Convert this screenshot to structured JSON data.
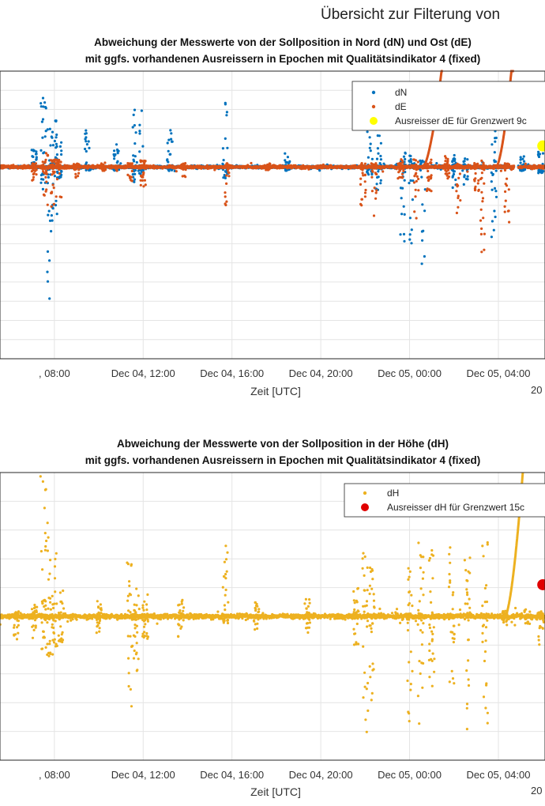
{
  "suptitle": "Übersicht zur Filterung von",
  "colors": {
    "dN": "#0072BD",
    "dE": "#D95319",
    "dH": "#EDB120",
    "outlier_dE": "#FFFF00",
    "outlier_dH": "#E00000"
  },
  "chart_data": [
    {
      "type": "scatter",
      "title": [
        "Abweichung der Messwerte von der Sollposition in Nord (dN) und Ost (dE)",
        "mit ggfs. vorhandenen Ausreissern in Epochen mit Qualitätsindikator 4 (fixed)"
      ],
      "xlabel": "Zeit [UTC]",
      "x_ticks": [
        ", 08:00",
        "Dec 04, 12:00",
        "Dec 04, 16:00",
        "Dec 04, 20:00",
        "Dec 05, 00:00",
        "Dec 05, 04:00"
      ],
      "x_ticks_hours": [
        8,
        12,
        16,
        20,
        24,
        28
      ],
      "x_partial_label": "20",
      "xlim_hours": [
        5.55,
        30.1
      ],
      "ylim": [
        -5,
        2.5
      ],
      "grid": true,
      "legend": {
        "placement": "top-right",
        "entries": [
          "dN",
          "dE",
          "Ausreisser dE für Grenzwert 9c"
        ]
      },
      "series": [
        {
          "name": "dN",
          "color": "#0072BD",
          "bursts": [
            [
              7.1,
              0.45,
              -0.05
            ],
            [
              7.5,
              1.8,
              -1.2
            ],
            [
              7.8,
              1.9,
              -3.9
            ],
            [
              8.0,
              1.5,
              -1.4
            ],
            [
              8.2,
              1.0,
              -0.3
            ],
            [
              9.5,
              1.0,
              -0.1
            ],
            [
              10.8,
              0.6,
              -0.1
            ],
            [
              11.6,
              1.6,
              -0.4
            ],
            [
              11.9,
              1.8,
              -0.2
            ],
            [
              13.2,
              1.0,
              -0.1
            ],
            [
              15.7,
              1.7,
              -0.3
            ],
            [
              18.5,
              0.4,
              -0.1
            ],
            [
              22.2,
              1.1,
              -0.2
            ],
            [
              22.6,
              1.3,
              -0.6
            ],
            [
              23.7,
              0.4,
              -2.3
            ],
            [
              24.1,
              0.3,
              -2.0
            ],
            [
              24.6,
              0.2,
              -2.6
            ],
            [
              26.0,
              0.8,
              -0.7
            ],
            [
              26.5,
              0.3,
              -0.5
            ],
            [
              27.8,
              1.2,
              -2.5
            ],
            [
              29.1,
              0.4,
              -0.1
            ],
            [
              29.9,
              0.6,
              -0.2
            ]
          ],
          "drift": []
        },
        {
          "name": "dE",
          "color": "#D95319",
          "bursts": [
            [
              7.1,
              0.1,
              -0.5
            ],
            [
              7.6,
              0.5,
              -1.1
            ],
            [
              7.9,
              0.3,
              -1.1
            ],
            [
              8.2,
              0.2,
              -0.8
            ],
            [
              9.0,
              0.1,
              -0.3
            ],
            [
              10.2,
              0.1,
              -0.1
            ],
            [
              11.4,
              0.1,
              -0.4
            ],
            [
              12.0,
              0.2,
              -0.6
            ],
            [
              13.8,
              0.1,
              -0.3
            ],
            [
              15.8,
              0.1,
              -1.1
            ],
            [
              17.6,
              0.1,
              -0.1
            ],
            [
              21.9,
              0.1,
              -1.0
            ],
            [
              22.4,
              0.1,
              -1.3
            ],
            [
              23.6,
              0.2,
              -0.3
            ],
            [
              24.3,
              0.2,
              -1.4
            ],
            [
              24.9,
              0.2,
              -0.7
            ],
            [
              25.7,
              0.3,
              -0.3
            ],
            [
              26.2,
              0.1,
              -1.2
            ],
            [
              27.3,
              0.2,
              -3.3
            ],
            [
              27.0,
              0.1,
              -0.8
            ],
            [
              28.4,
              0.1,
              -1.5
            ]
          ],
          "drift": [
            [
              24.6,
              0.0
            ],
            [
              25.5,
              2.8
            ],
            [
              27.9,
              0.0
            ],
            [
              28.7,
              3.2
            ]
          ]
        },
        {
          "name": "Ausreisser dE für Grenzwert 9c",
          "color": "#FFFF00",
          "points": [
            [
              30.0,
              0.55
            ]
          ]
        }
      ]
    },
    {
      "type": "scatter",
      "title": [
        "Abweichung der Messwerte von der Sollposition in der Höhe (dH)",
        "mit ggfs. vorhandenen Ausreissern in Epochen mit Qualitätsindikator 4 (fixed)"
      ],
      "xlabel": "Zeit [UTC]",
      "x_ticks": [
        ", 08:00",
        "Dec 04, 12:00",
        "Dec 04, 16:00",
        "Dec 04, 20:00",
        "Dec 05, 00:00",
        "Dec 05, 04:00"
      ],
      "x_ticks_hours": [
        8,
        12,
        16,
        20,
        24,
        28
      ],
      "x_partial_label": "20",
      "xlim_hours": [
        5.55,
        30.1
      ],
      "ylim": [
        -5,
        5
      ],
      "grid": true,
      "legend": {
        "placement": "top-right",
        "entries": [
          "dH",
          "Ausreisser dH für Grenzwert 15c"
        ]
      },
      "series": [
        {
          "name": "dH",
          "color": "#EDB120",
          "bursts": [
            [
              6.3,
              0.2,
              -0.8
            ],
            [
              7.1,
              0.4,
              -1.1
            ],
            [
              7.5,
              5.0,
              -1.2
            ],
            [
              7.7,
              3.8,
              -1.6
            ],
            [
              8.0,
              2.4,
              -1.8
            ],
            [
              8.3,
              1.0,
              -0.9
            ],
            [
              10.0,
              0.6,
              -0.6
            ],
            [
              11.4,
              2.0,
              -3.5
            ],
            [
              11.7,
              1.6,
              -1.9
            ],
            [
              12.1,
              0.8,
              -0.8
            ],
            [
              13.7,
              0.6,
              -0.8
            ],
            [
              15.7,
              2.6,
              -0.4
            ],
            [
              17.1,
              0.5,
              -0.5
            ],
            [
              19.4,
              0.6,
              -0.6
            ],
            [
              21.6,
              1.3,
              -1.1
            ],
            [
              22.0,
              2.2,
              -4.1
            ],
            [
              22.3,
              1.8,
              -3.4
            ],
            [
              24.0,
              1.9,
              -4.1
            ],
            [
              24.5,
              3.0,
              -3.8
            ],
            [
              25.0,
              3.0,
              -2.7
            ],
            [
              25.9,
              2.4,
              -2.4
            ],
            [
              26.6,
              2.1,
              -4.1
            ],
            [
              27.4,
              2.8,
              -4.0
            ],
            [
              28.3,
              0.2,
              -0.3
            ],
            [
              29.3,
              0.3,
              -0.3
            ],
            [
              29.9,
              0.2,
              -1.0
            ]
          ],
          "drift": [
            [
              28.3,
              0.0
            ],
            [
              29.1,
              5.0
            ]
          ]
        },
        {
          "name": "Ausreisser dH für Grenzwert 15c",
          "color": "#E00000",
          "points": [
            [
              30.0,
              1.1
            ]
          ]
        }
      ]
    }
  ]
}
